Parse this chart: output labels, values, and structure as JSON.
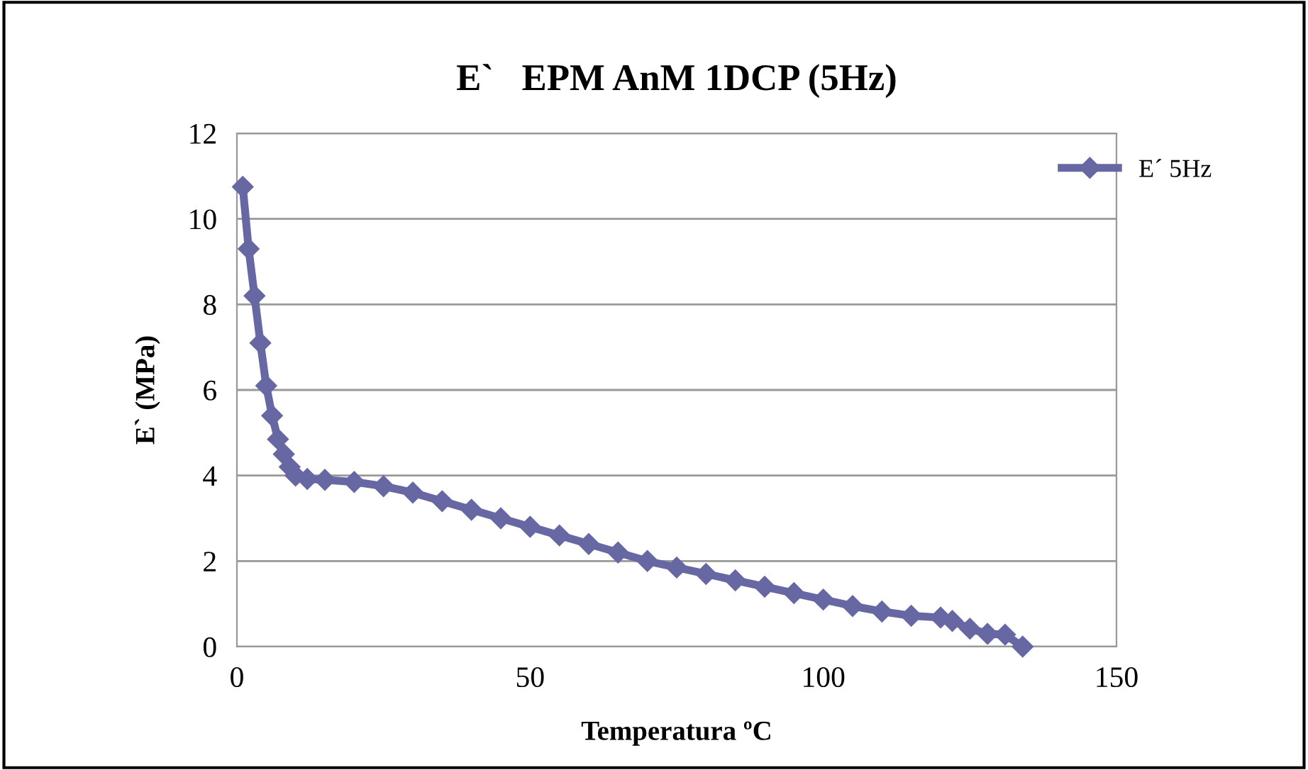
{
  "chart_data": {
    "type": "line",
    "title": "E`   EPM AnM 1DCP (5Hz)",
    "xlabel": "Temperatura ºC",
    "ylabel": "E` (MPa)",
    "series": [
      {
        "name": "E´ 5Hz",
        "color": "#6667a3",
        "x": [
          1,
          2,
          3,
          4,
          5,
          6,
          7,
          8,
          9,
          10,
          12,
          15,
          20,
          25,
          30,
          35,
          40,
          45,
          50,
          55,
          60,
          65,
          70,
          75,
          80,
          85,
          90,
          95,
          100,
          105,
          110,
          115,
          120,
          122,
          125,
          128,
          131,
          134
        ],
        "values": [
          10.75,
          9.3,
          8.2,
          7.1,
          6.1,
          5.4,
          4.85,
          4.5,
          4.2,
          4.0,
          3.92,
          3.9,
          3.85,
          3.75,
          3.6,
          3.4,
          3.2,
          3.0,
          2.8,
          2.6,
          2.4,
          2.2,
          2.0,
          1.85,
          1.7,
          1.55,
          1.4,
          1.25,
          1.1,
          0.95,
          0.82,
          0.72,
          0.68,
          0.6,
          0.42,
          0.3,
          0.28,
          0.0
        ]
      }
    ],
    "xlim": [
      0,
      150
    ],
    "xticks": [
      0,
      50,
      100,
      150
    ],
    "ylim": [
      0,
      12
    ],
    "yticks": [
      0,
      2,
      4,
      6,
      8,
      10,
      12
    ],
    "grid": "y",
    "legend": "top right",
    "marker": "diamond",
    "line_style": "solid"
  }
}
